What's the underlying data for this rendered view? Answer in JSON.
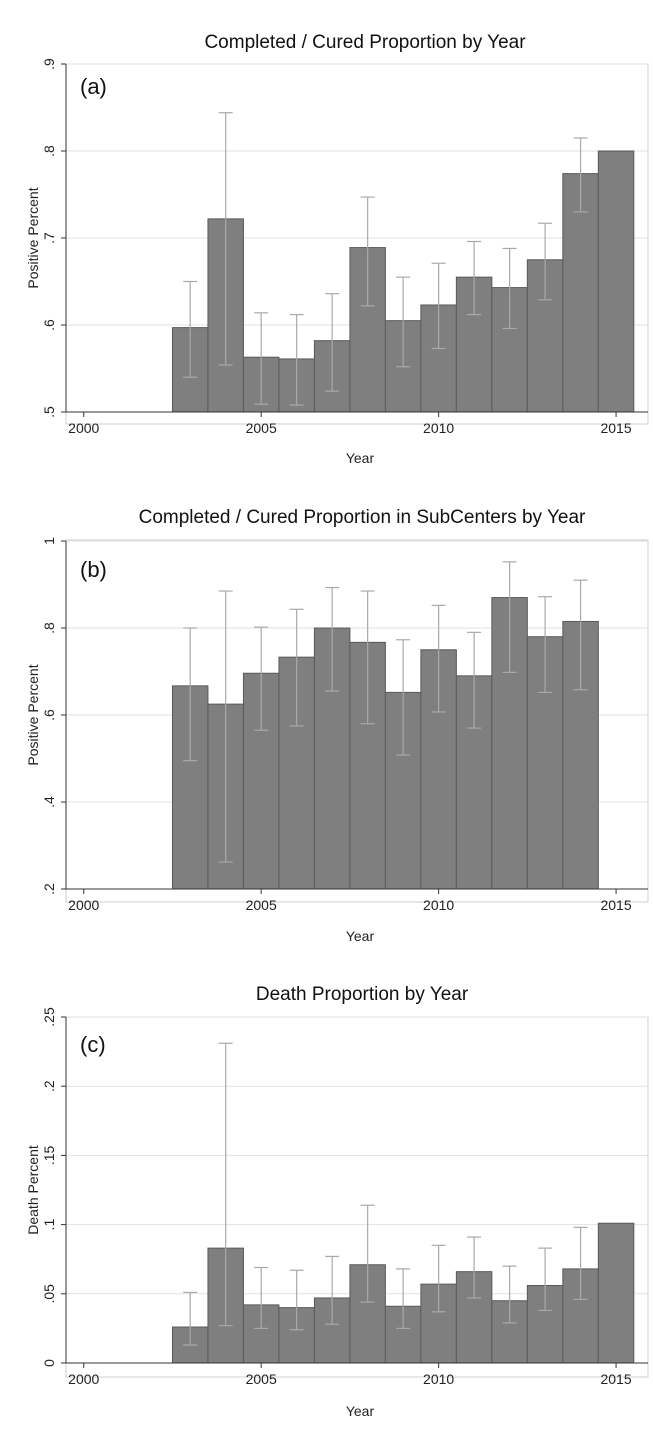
{
  "chart_data": [
    {
      "type": "bar",
      "panel_label": "(a)",
      "title": "Completed / Cured Proportion by Year",
      "xlabel": "Year",
      "ylabel": "Positive Percent",
      "ylim": [
        0.5,
        0.9
      ],
      "xlim": [
        1999.5,
        2015.9
      ],
      "y_ticks": [
        0.5,
        0.6,
        0.7,
        0.8,
        0.9
      ],
      "y_tick_labels": [
        ".5",
        ".6",
        ".7",
        ".8",
        ".9"
      ],
      "x_ticks": [
        2000,
        2005,
        2010,
        2015
      ],
      "x_tick_labels": [
        "2000",
        "2005",
        "2010",
        "2015"
      ],
      "grid": true,
      "x": [
        2003,
        2004,
        2005,
        2006,
        2007,
        2008,
        2009,
        2010,
        2011,
        2012,
        2013,
        2014,
        2015
      ],
      "values": [
        0.597,
        0.722,
        0.563,
        0.561,
        0.582,
        0.689,
        0.605,
        0.623,
        0.655,
        0.643,
        0.675,
        0.774,
        0.8
      ],
      "ci_low": [
        0.54,
        0.554,
        0.509,
        0.508,
        0.524,
        0.622,
        0.552,
        0.573,
        0.612,
        0.596,
        0.629,
        0.73,
        null
      ],
      "ci_high": [
        0.65,
        0.844,
        0.614,
        0.612,
        0.636,
        0.747,
        0.655,
        0.671,
        0.696,
        0.688,
        0.717,
        0.815,
        null
      ]
    },
    {
      "type": "bar",
      "panel_label": "(b)",
      "title": "Completed / Cured Proportion in SubCenters by Year",
      "xlabel": "Year",
      "ylabel": "Positive Percent",
      "ylim": [
        0.2,
        1.0
      ],
      "xlim": [
        1999.5,
        2015.9
      ],
      "y_ticks": [
        0.2,
        0.4,
        0.6,
        0.8,
        1.0
      ],
      "y_tick_labels": [
        ".2",
        ".4",
        ".6",
        ".8",
        "1"
      ],
      "x_ticks": [
        2000,
        2005,
        2010,
        2015
      ],
      "x_tick_labels": [
        "2000",
        "2005",
        "2010",
        "2015"
      ],
      "grid": true,
      "x": [
        2003,
        2004,
        2005,
        2006,
        2007,
        2008,
        2009,
        2010,
        2011,
        2012,
        2013,
        2014
      ],
      "values": [
        0.667,
        0.625,
        0.696,
        0.733,
        0.8,
        0.767,
        0.652,
        0.75,
        0.69,
        0.87,
        0.78,
        0.815
      ],
      "ci_low": [
        0.495,
        0.262,
        0.565,
        0.575,
        0.655,
        0.58,
        0.508,
        0.607,
        0.57,
        0.698,
        0.652,
        0.658
      ],
      "ci_high": [
        0.8,
        0.885,
        0.802,
        0.843,
        0.893,
        0.885,
        0.773,
        0.852,
        0.79,
        0.952,
        0.872,
        0.91
      ]
    },
    {
      "type": "bar",
      "panel_label": "(c)",
      "title": "Death Proportion by Year",
      "xlabel": "Year",
      "ylabel": "Death Percent",
      "ylim": [
        0,
        0.25
      ],
      "xlim": [
        1999.5,
        2015.9
      ],
      "y_ticks": [
        0,
        0.05,
        0.1,
        0.15,
        0.2,
        0.25
      ],
      "y_tick_labels": [
        "0",
        ".05",
        ".1",
        ".15",
        ".2",
        ".25"
      ],
      "x_ticks": [
        2000,
        2005,
        2010,
        2015
      ],
      "x_tick_labels": [
        "2000",
        "2005",
        "2010",
        "2015"
      ],
      "grid": true,
      "x": [
        2003,
        2004,
        2005,
        2006,
        2007,
        2008,
        2009,
        2010,
        2011,
        2012,
        2013,
        2014,
        2015
      ],
      "values": [
        0.026,
        0.083,
        0.042,
        0.04,
        0.047,
        0.071,
        0.041,
        0.057,
        0.066,
        0.045,
        0.056,
        0.068,
        0.101
      ],
      "ci_low": [
        0.013,
        0.027,
        0.025,
        0.024,
        0.028,
        0.044,
        0.025,
        0.037,
        0.047,
        0.029,
        0.038,
        0.046,
        null
      ],
      "ci_high": [
        0.051,
        0.231,
        0.069,
        0.067,
        0.077,
        0.114,
        0.068,
        0.085,
        0.091,
        0.07,
        0.083,
        0.098,
        null
      ]
    }
  ]
}
